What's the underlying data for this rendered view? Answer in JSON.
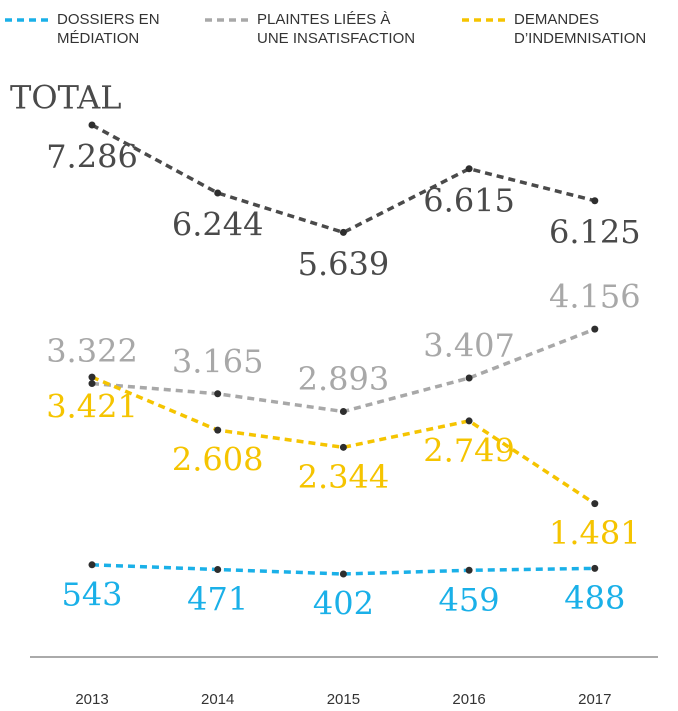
{
  "chart_data": {
    "type": "line",
    "categories": [
      "2013",
      "2014",
      "2015",
      "2016",
      "2017"
    ],
    "series": [
      {
        "name": "TOTAL",
        "color": "#4a4a4a",
        "values": [
          7286,
          6244,
          5639,
          6615,
          6125
        ],
        "value_labels": [
          "7.286",
          "6.244",
          "5.639",
          "6.615",
          "6.125"
        ]
      },
      {
        "name": "DOSSIERS EN\nMÉDIATION",
        "color": "#1ab0e8",
        "values": [
          543,
          471,
          402,
          459,
          488
        ],
        "value_labels": [
          "543",
          "471",
          "402",
          "459",
          "488"
        ]
      },
      {
        "name": "PLAINTES LIÉES À\nUNE INSATISFACTION",
        "color": "#a8a8a8",
        "values": [
          3322,
          3165,
          2893,
          3407,
          4156
        ],
        "value_labels": [
          "3.322",
          "3.165",
          "2.893",
          "3.407",
          "4.156"
        ]
      },
      {
        "name": "DEMANDES\nD’INDEMNISATION",
        "color": "#f5c400",
        "values": [
          3421,
          2608,
          2344,
          2749,
          1481
        ],
        "value_labels": [
          "3.421",
          "2.608",
          "2.344",
          "2.749",
          "1.481"
        ]
      }
    ]
  }
}
